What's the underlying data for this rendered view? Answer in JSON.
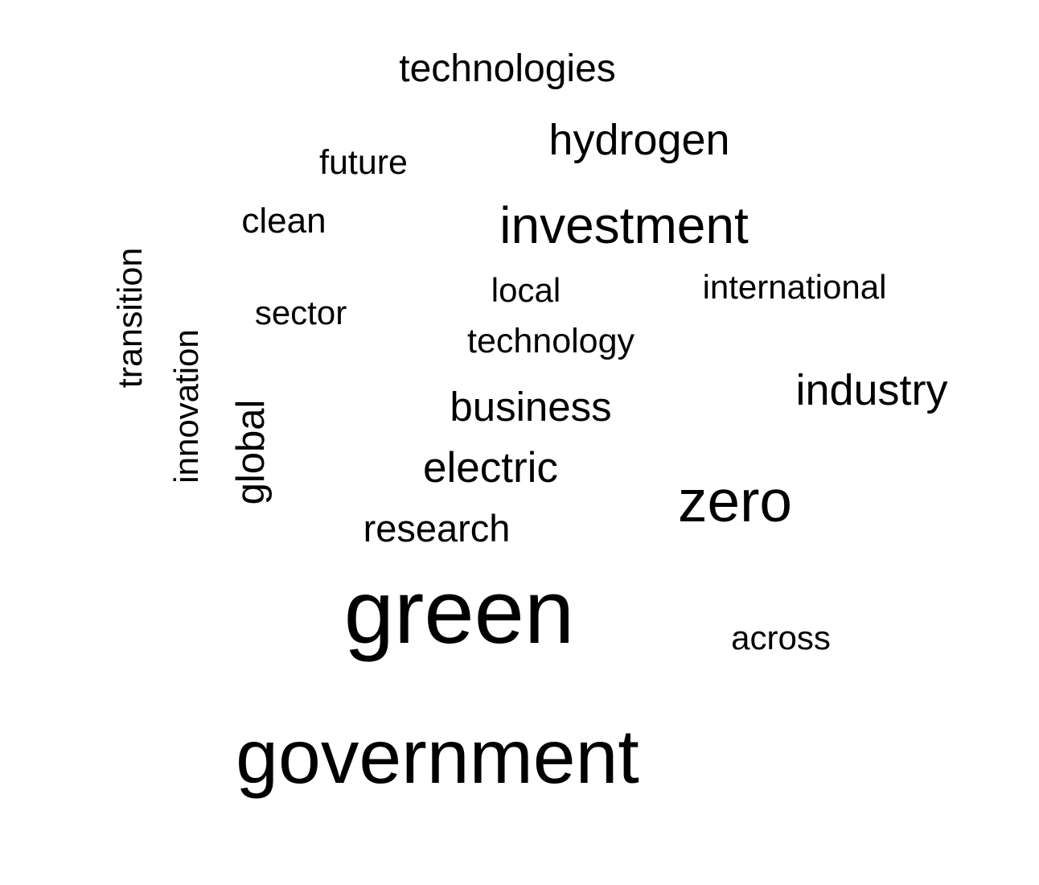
{
  "text_color": "#000000",
  "background_color": "#ffffff",
  "words": [
    {
      "id": "technologies",
      "text": "technologies"
    },
    {
      "id": "hydrogen",
      "text": "hydrogen"
    },
    {
      "id": "future",
      "text": "future"
    },
    {
      "id": "clean",
      "text": "clean"
    },
    {
      "id": "investment",
      "text": "investment"
    },
    {
      "id": "transition",
      "text": "transition"
    },
    {
      "id": "local",
      "text": "local"
    },
    {
      "id": "international",
      "text": "international"
    },
    {
      "id": "sector",
      "text": "sector"
    },
    {
      "id": "innovation",
      "text": "innovation"
    },
    {
      "id": "technology",
      "text": "technology"
    },
    {
      "id": "industry",
      "text": "industry"
    },
    {
      "id": "global",
      "text": "global"
    },
    {
      "id": "business",
      "text": "business"
    },
    {
      "id": "electric",
      "text": "electric"
    },
    {
      "id": "zero",
      "text": "zero"
    },
    {
      "id": "research",
      "text": "research"
    },
    {
      "id": "green",
      "text": "green"
    },
    {
      "id": "across",
      "text": "across"
    },
    {
      "id": "government",
      "text": "government"
    }
  ]
}
